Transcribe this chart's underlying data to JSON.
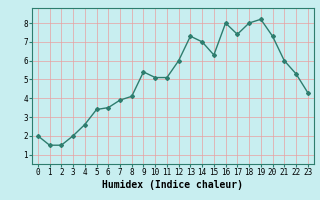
{
  "x": [
    0,
    1,
    2,
    3,
    4,
    5,
    6,
    7,
    8,
    9,
    10,
    11,
    12,
    13,
    14,
    15,
    16,
    17,
    18,
    19,
    20,
    21,
    22,
    23
  ],
  "y": [
    2.0,
    1.5,
    1.5,
    2.0,
    2.6,
    3.4,
    3.5,
    3.9,
    4.1,
    5.4,
    5.1,
    5.1,
    6.0,
    7.3,
    7.0,
    6.3,
    8.0,
    7.4,
    8.0,
    8.2,
    7.3,
    6.0,
    5.3,
    4.3
  ],
  "line_color": "#2e7d6e",
  "marker": "D",
  "marker_size": 2.0,
  "line_width": 1.0,
  "bg_color": "#c8eef0",
  "grid_color": "#e8a0a0",
  "xlabel": "Humidex (Indice chaleur)",
  "xlabel_fontsize": 7,
  "xlim": [
    -0.5,
    23.5
  ],
  "ylim": [
    0.5,
    8.8
  ],
  "yticks": [
    1,
    2,
    3,
    4,
    5,
    6,
    7,
    8
  ],
  "xticks": [
    0,
    1,
    2,
    3,
    4,
    5,
    6,
    7,
    8,
    9,
    10,
    11,
    12,
    13,
    14,
    15,
    16,
    17,
    18,
    19,
    20,
    21,
    22,
    23
  ],
  "tick_fontsize": 5.5
}
